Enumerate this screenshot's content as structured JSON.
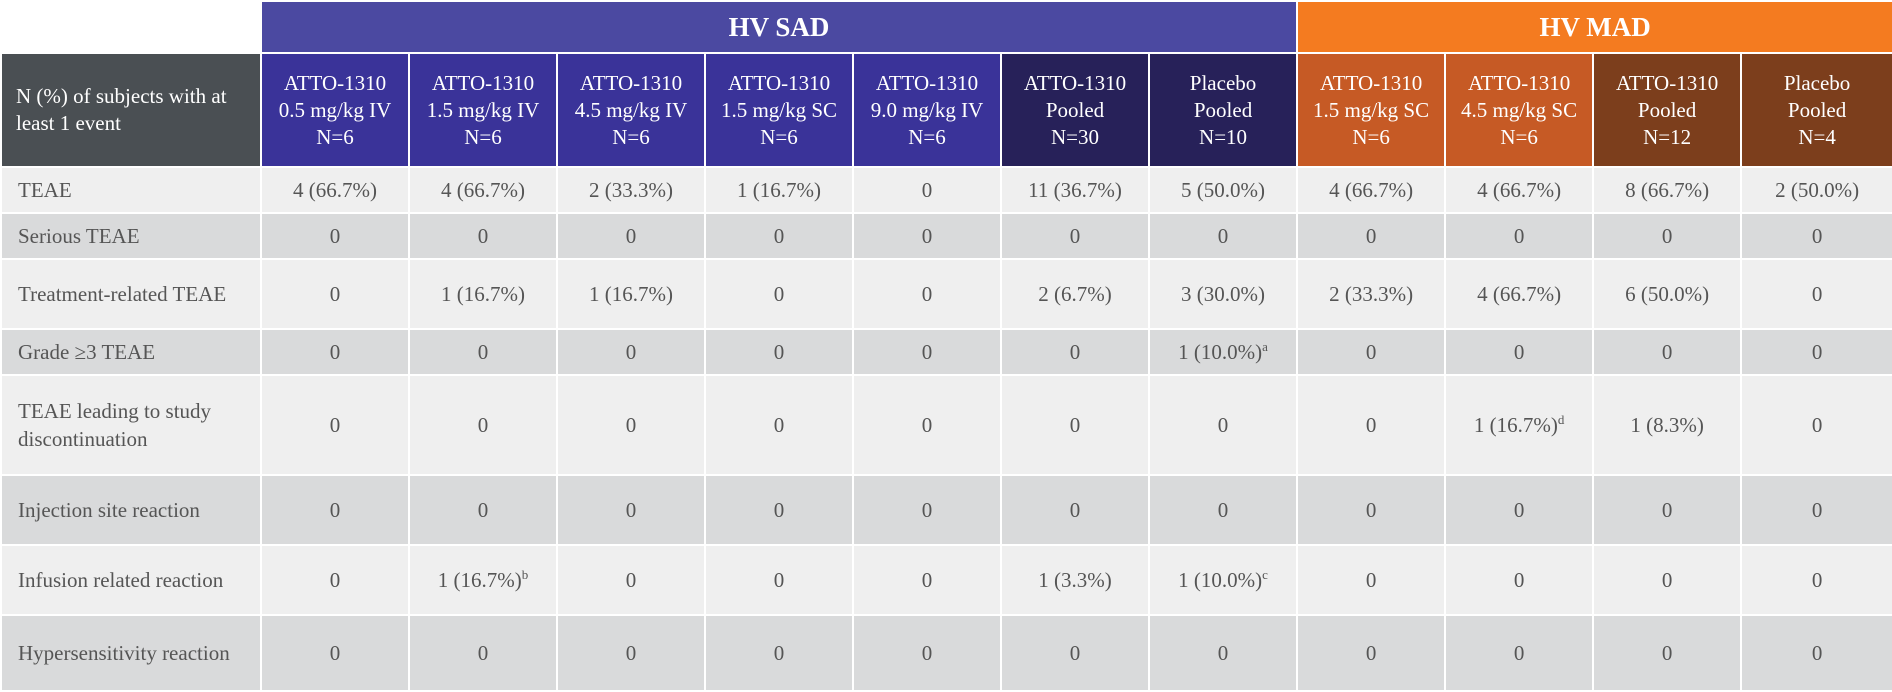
{
  "groups": {
    "sad": "HV SAD",
    "mad": "HV MAD"
  },
  "header": {
    "row_label": "N (%) of subjects with at least 1 event",
    "columns": [
      {
        "lines": [
          "ATTO-1310",
          "0.5 mg/kg IV",
          "N=6"
        ],
        "color": "#3a3399"
      },
      {
        "lines": [
          "ATTO-1310",
          "1.5 mg/kg IV",
          "N=6"
        ],
        "color": "#3a3399"
      },
      {
        "lines": [
          "ATTO-1310",
          "4.5 mg/kg IV",
          "N=6"
        ],
        "color": "#3a3399"
      },
      {
        "lines": [
          "ATTO-1310",
          "1.5 mg/kg SC",
          "N=6"
        ],
        "color": "#3a3399"
      },
      {
        "lines": [
          "ATTO-1310",
          "9.0 mg/kg IV",
          "N=6"
        ],
        "color": "#3a3399"
      },
      {
        "lines": [
          "ATTO-1310",
          "Pooled",
          "N=30"
        ],
        "color": "#272159"
      },
      {
        "lines": [
          "Placebo",
          "Pooled",
          "N=10"
        ],
        "color": "#272159"
      },
      {
        "lines": [
          "ATTO-1310",
          "1.5 mg/kg SC",
          "N=6"
        ],
        "color": "#c65a25"
      },
      {
        "lines": [
          "ATTO-1310",
          "4.5 mg/kg SC",
          "N=6"
        ],
        "color": "#c65a25"
      },
      {
        "lines": [
          "ATTO-1310",
          "Pooled",
          "N=12"
        ],
        "color": "#7c3e1c"
      },
      {
        "lines": [
          "Placebo",
          "Pooled",
          "N=4"
        ],
        "color": "#7c3e1c"
      }
    ]
  },
  "rows": [
    {
      "label": "TEAE",
      "cells": [
        {
          "v": "4 (66.7%)"
        },
        {
          "v": "4 (66.7%)"
        },
        {
          "v": "2 (33.3%)"
        },
        {
          "v": "1 (16.7%)"
        },
        {
          "v": "0"
        },
        {
          "v": "11 (36.7%)"
        },
        {
          "v": "5 (50.0%)"
        },
        {
          "v": "4 (66.7%)"
        },
        {
          "v": "4 (66.7%)"
        },
        {
          "v": "8 (66.7%)"
        },
        {
          "v": "2 (50.0%)"
        }
      ]
    },
    {
      "label": "Serious TEAE",
      "cells": [
        {
          "v": "0"
        },
        {
          "v": "0"
        },
        {
          "v": "0"
        },
        {
          "v": "0"
        },
        {
          "v": "0"
        },
        {
          "v": "0"
        },
        {
          "v": "0"
        },
        {
          "v": "0"
        },
        {
          "v": "0"
        },
        {
          "v": "0"
        },
        {
          "v": "0"
        }
      ]
    },
    {
      "label": "Treatment-related TEAE",
      "cells": [
        {
          "v": "0"
        },
        {
          "v": "1 (16.7%)"
        },
        {
          "v": "1 (16.7%)"
        },
        {
          "v": "0"
        },
        {
          "v": "0"
        },
        {
          "v": "2 (6.7%)"
        },
        {
          "v": "3 (30.0%)"
        },
        {
          "v": "2 (33.3%)"
        },
        {
          "v": "4 (66.7%)"
        },
        {
          "v": "6 (50.0%)"
        },
        {
          "v": "0"
        }
      ]
    },
    {
      "label": "Grade ≥3 TEAE",
      "cells": [
        {
          "v": "0"
        },
        {
          "v": "0"
        },
        {
          "v": "0"
        },
        {
          "v": "0"
        },
        {
          "v": "0"
        },
        {
          "v": "0"
        },
        {
          "v": "1 (10.0%)",
          "sup": "a"
        },
        {
          "v": "0"
        },
        {
          "v": "0"
        },
        {
          "v": "0"
        },
        {
          "v": "0"
        }
      ]
    },
    {
      "label": "TEAE leading to study discontinuation",
      "cells": [
        {
          "v": "0"
        },
        {
          "v": "0"
        },
        {
          "v": "0"
        },
        {
          "v": "0"
        },
        {
          "v": "0"
        },
        {
          "v": "0"
        },
        {
          "v": "0"
        },
        {
          "v": "0"
        },
        {
          "v": "1 (16.7%)",
          "sup": "d"
        },
        {
          "v": "1 (8.3%)"
        },
        {
          "v": "0"
        }
      ]
    },
    {
      "label": "Injection site reaction",
      "cells": [
        {
          "v": "0"
        },
        {
          "v": "0"
        },
        {
          "v": "0"
        },
        {
          "v": "0"
        },
        {
          "v": "0"
        },
        {
          "v": "0"
        },
        {
          "v": "0"
        },
        {
          "v": "0"
        },
        {
          "v": "0"
        },
        {
          "v": "0"
        },
        {
          "v": "0"
        }
      ]
    },
    {
      "label": "Infusion related reaction",
      "cells": [
        {
          "v": "0"
        },
        {
          "v": "1 (16.7%)",
          "sup": "b"
        },
        {
          "v": "0"
        },
        {
          "v": "0"
        },
        {
          "v": "0"
        },
        {
          "v": "1 (3.3%)"
        },
        {
          "v": "1 (10.0%)",
          "sup": "c"
        },
        {
          "v": "0"
        },
        {
          "v": "0"
        },
        {
          "v": "0"
        },
        {
          "v": "0"
        }
      ]
    },
    {
      "label": "Hypersensitivity reaction",
      "cells": [
        {
          "v": "0"
        },
        {
          "v": "0"
        },
        {
          "v": "0"
        },
        {
          "v": "0"
        },
        {
          "v": "0"
        },
        {
          "v": "0"
        },
        {
          "v": "0"
        },
        {
          "v": "0"
        },
        {
          "v": "0"
        },
        {
          "v": "0"
        },
        {
          "v": "0"
        }
      ]
    }
  ]
}
